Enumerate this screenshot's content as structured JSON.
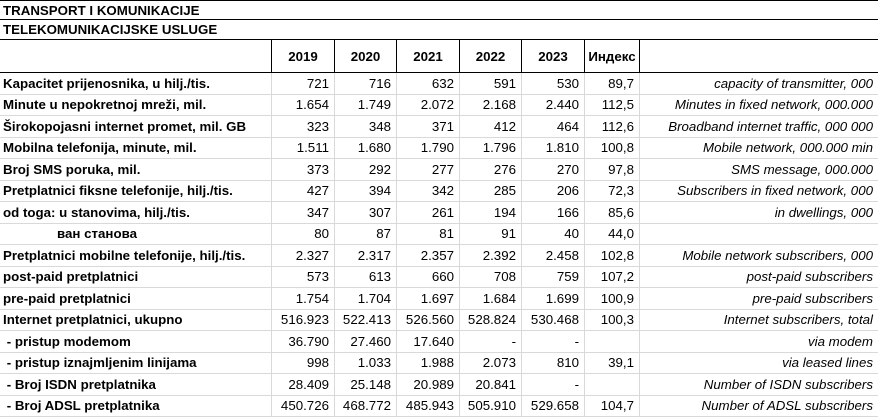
{
  "titles": {
    "line1": "TRANSPORT I KOMUNIKACIJE",
    "line2": "TELEKOMUNIKACIJSKE USLUGE"
  },
  "header": {
    "years": [
      "2019",
      "2020",
      "2021",
      "2022",
      "2023"
    ],
    "index_label": "Индекс"
  },
  "rows": [
    {
      "label": "Kapacitet prijenosnika, u hilj./tis.",
      "values": [
        "721",
        "716",
        "632",
        "591",
        "530"
      ],
      "index": "89,7",
      "eng": "capacity of transmitter, 000"
    },
    {
      "label": "Minute u nepokretnoj mreži, mil.",
      "values": [
        "1.654",
        "1.749",
        "2.072",
        "2.168",
        "2.440"
      ],
      "index": "112,5",
      "eng": "Minutes in fixed network, 000.000"
    },
    {
      "label": "Širokopojasni internet promet, mil. GB",
      "values": [
        "323",
        "348",
        "371",
        "412",
        "464"
      ],
      "index": "112,6",
      "eng": "Broadband internet traffic, 000 000"
    },
    {
      "label": "Mobilna telefonija, minute, mil.",
      "values": [
        "1.511",
        "1.680",
        "1.790",
        "1.796",
        "1.810"
      ],
      "index": "100,8",
      "eng": "Mobile network, 000.000 min"
    },
    {
      "label": "Broj SMS poruka, mil.",
      "values": [
        "373",
        "292",
        "277",
        "276",
        "270"
      ],
      "index": "97,8",
      "eng": "SMS message, 000.000"
    },
    {
      "label": "Pretplatnici fiksne telefonije, hilj./tis.",
      "values": [
        "427",
        "394",
        "342",
        "285",
        "206"
      ],
      "index": "72,3",
      "eng": "Subscribers in fixed network, 000"
    },
    {
      "label": "od toga: u stanovima, hilj./tis.",
      "values": [
        "347",
        "307",
        "261",
        "194",
        "166"
      ],
      "index": "85,6",
      "eng": "in dwellings, 000"
    },
    {
      "label": "ван станова",
      "indent": true,
      "values": [
        "80",
        "87",
        "81",
        "91",
        "40"
      ],
      "index": "44,0",
      "eng": ""
    },
    {
      "label": "Pretplatnici mobilne telefonije, hilj./tis.",
      "values": [
        "2.327",
        "2.317",
        "2.357",
        "2.392",
        "2.458"
      ],
      "index": "102,8",
      "eng": "Mobile network subscribers, 000"
    },
    {
      "label": "post-paid pretplatnici",
      "values": [
        "573",
        "613",
        "660",
        "708",
        "759"
      ],
      "index": "107,2",
      "eng": "post-paid subscribers"
    },
    {
      "label": "pre-paid pretplatnici",
      "values": [
        "1.754",
        "1.704",
        "1.697",
        "1.684",
        "1.699"
      ],
      "index": "100,9",
      "eng": "pre-paid subscribers"
    },
    {
      "label": "Internet pretplatnici, ukupno",
      "values": [
        "516.923",
        "522.413",
        "526.560",
        "528.824",
        "530.468"
      ],
      "index": "100,3",
      "eng": "Internet subscribers, total"
    },
    {
      "label": " - pristup modemom",
      "values": [
        "36.790",
        "27.460",
        "17.640",
        "-",
        "-"
      ],
      "index": "",
      "eng": "via modem"
    },
    {
      "label": " - pristup iznajmljenim linijama",
      "values": [
        "998",
        "1.033",
        "1.988",
        "2.073",
        "810"
      ],
      "index": "39,1",
      "eng": "via leased lines"
    },
    {
      "label": " - Broj ISDN pretplatnika",
      "values": [
        "28.409",
        "25.148",
        "20.989",
        "20.841",
        "-"
      ],
      "index": "",
      "eng": "Number of ISDN subscribers"
    },
    {
      "label": " - Broj ADSL pretplatnika",
      "values": [
        "450.726",
        "468.772",
        "485.943",
        "505.910",
        "529.658"
      ],
      "index": "104,7",
      "eng": "Number of ADSL subscribers"
    }
  ],
  "colors": {
    "gridline": "#d9d9d9",
    "border": "#000000",
    "text": "#000000",
    "background": "#ffffff"
  }
}
